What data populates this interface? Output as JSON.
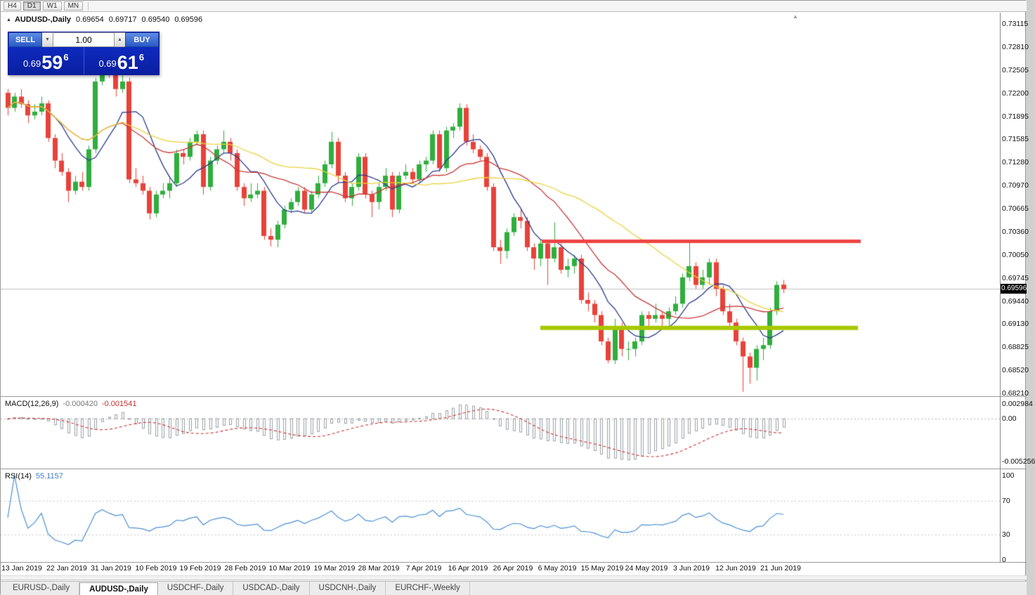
{
  "toolbar": {
    "timeframes": [
      {
        "label": "H4",
        "active": false
      },
      {
        "label": "D1",
        "active": true
      },
      {
        "label": "W1",
        "active": false
      },
      {
        "label": "MN",
        "active": false
      }
    ]
  },
  "header": {
    "collapse_icon": "▲",
    "symbol": "AUDUSD-,Daily",
    "open": "0.69654",
    "high": "0.69717",
    "low": "0.69540",
    "close": "0.69596"
  },
  "one_click": {
    "sell_label": "SELL",
    "buy_label": "BUY",
    "volume": "1.00",
    "spin_down": "▼",
    "spin_up": "▲",
    "sell_price": {
      "prefix": "0.69",
      "pips": "59",
      "pipette": "6"
    },
    "buy_price": {
      "prefix": "0.69",
      "pips": "61",
      "pipette": "6"
    }
  },
  "current_price_tag": "0.69596",
  "price_axis_labels": [
    "0.73115",
    "0.72810",
    "0.72505",
    "0.72200",
    "0.71895",
    "0.71585",
    "0.71280",
    "0.70970",
    "0.70665",
    "0.70360",
    "0.70050",
    "0.69745",
    "0.69440",
    "0.69130",
    "0.68825",
    "0.68520",
    "0.68210"
  ],
  "macd_panel": {
    "title": "MACD(12,26,9)",
    "main_value": "-0.000420",
    "signal_value": "-0.001541",
    "axis_top": "0.002984",
    "axis_zero": "0.00",
    "axis_bottom": "-0.005256"
  },
  "rsi_panel": {
    "title": "RSI(14)",
    "value": "55.1157",
    "axis": [
      "100",
      "70",
      "30",
      "0"
    ],
    "levels": [
      70,
      30
    ]
  },
  "tabs": [
    {
      "label": "EURUSD-,Daily",
      "active": false
    },
    {
      "label": "AUDUSD-,Daily",
      "active": true
    },
    {
      "label": "USDCHF-,Daily",
      "active": false
    },
    {
      "label": "USDCAD-,Daily",
      "active": false
    },
    {
      "label": "USDCNH-,Daily",
      "active": false
    },
    {
      "label": "EURCHF-,Weekly",
      "active": false
    }
  ],
  "colors": {
    "up": "#2fae3d",
    "down": "#e8423a",
    "ma_fast": "#2b3a8f",
    "ma_mid": "#c93a3a",
    "ma_slow": "#e9d23c",
    "macd_hist": "#9aa0a6",
    "macd_signal": "#cc3333",
    "rsi_line": "#4a8fd4",
    "hline_red": "#ef4444",
    "hline_olive": "#a6c800",
    "price_line": "#c0c0c0",
    "tag_bg": "#000000"
  },
  "chart_data": {
    "type": "candlestick",
    "title": "AUDUSD-,Daily",
    "ylim": [
      0.6821,
      0.73115
    ],
    "x_axis_dates": [
      "13 Jan 2019",
      "22 Jan 2019",
      "31 Jan 2019",
      "10 Feb 2019",
      "19 Feb 2019",
      "28 Feb 2019",
      "10 Mar 2019",
      "19 Mar 2019",
      "28 Mar 2019",
      "7 Apr 2019",
      "16 Apr 2019",
      "26 Apr 2019",
      "6 May 2019",
      "15 May 2019",
      "24 May 2019",
      "3 Jun 2019",
      "12 Jun 2019",
      "21 Jun 2019"
    ],
    "current_bar_ohlc": [
      0.69654,
      0.69717,
      0.6954,
      0.69596
    ],
    "candles_ohlc": [
      [
        0.722,
        0.7225,
        0.719,
        0.72
      ],
      [
        0.72,
        0.722,
        0.7195,
        0.7215
      ],
      [
        0.7215,
        0.7225,
        0.72,
        0.7205
      ],
      [
        0.7205,
        0.721,
        0.718,
        0.719
      ],
      [
        0.719,
        0.7205,
        0.7185,
        0.7195
      ],
      [
        0.7195,
        0.7215,
        0.719,
        0.7206
      ],
      [
        0.7206,
        0.721,
        0.7155,
        0.716
      ],
      [
        0.716,
        0.7165,
        0.712,
        0.713
      ],
      [
        0.713,
        0.714,
        0.711,
        0.7115
      ],
      [
        0.7115,
        0.712,
        0.7075,
        0.709
      ],
      [
        0.709,
        0.711,
        0.7085,
        0.7102
      ],
      [
        0.7102,
        0.7115,
        0.709,
        0.7095
      ],
      [
        0.7095,
        0.715,
        0.709,
        0.7145
      ],
      [
        0.7145,
        0.724,
        0.714,
        0.7235
      ],
      [
        0.7235,
        0.729,
        0.723,
        0.727
      ],
      [
        0.727,
        0.7275,
        0.724,
        0.7245
      ],
      [
        0.7245,
        0.725,
        0.7215,
        0.7225
      ],
      [
        0.7225,
        0.7245,
        0.722,
        0.7235
      ],
      [
        0.7235,
        0.724,
        0.71,
        0.7105
      ],
      [
        0.7105,
        0.712,
        0.7095,
        0.71
      ],
      [
        0.71,
        0.711,
        0.7085,
        0.709
      ],
      [
        0.709,
        0.7095,
        0.7052,
        0.706
      ],
      [
        0.706,
        0.709,
        0.7055,
        0.7085
      ],
      [
        0.7085,
        0.71,
        0.708,
        0.709
      ],
      [
        0.709,
        0.711,
        0.708,
        0.71
      ],
      [
        0.71,
        0.7145,
        0.7095,
        0.714
      ],
      [
        0.714,
        0.7145,
        0.7125,
        0.7135
      ],
      [
        0.7135,
        0.716,
        0.713,
        0.7155
      ],
      [
        0.7155,
        0.717,
        0.715,
        0.7165
      ],
      [
        0.7165,
        0.717,
        0.7085,
        0.7095
      ],
      [
        0.7095,
        0.7135,
        0.709,
        0.713
      ],
      [
        0.713,
        0.715,
        0.7125,
        0.7145
      ],
      [
        0.7145,
        0.717,
        0.714,
        0.7155
      ],
      [
        0.7155,
        0.716,
        0.713,
        0.714
      ],
      [
        0.714,
        0.7145,
        0.709,
        0.7095
      ],
      [
        0.7095,
        0.71,
        0.707,
        0.708
      ],
      [
        0.708,
        0.71,
        0.7075,
        0.7085
      ],
      [
        0.7085,
        0.71,
        0.708,
        0.709
      ],
      [
        0.709,
        0.7095,
        0.7025,
        0.703
      ],
      [
        0.703,
        0.704,
        0.7016,
        0.7025
      ],
      [
        0.7025,
        0.705,
        0.7015,
        0.7045
      ],
      [
        0.7045,
        0.707,
        0.704,
        0.7065
      ],
      [
        0.7065,
        0.708,
        0.706,
        0.7075
      ],
      [
        0.7075,
        0.7095,
        0.707,
        0.709
      ],
      [
        0.709,
        0.7095,
        0.706,
        0.7065
      ],
      [
        0.7065,
        0.709,
        0.706,
        0.7085
      ],
      [
        0.7085,
        0.711,
        0.708,
        0.71
      ],
      [
        0.71,
        0.713,
        0.7095,
        0.7125
      ],
      [
        0.7125,
        0.7168,
        0.712,
        0.7155
      ],
      [
        0.7155,
        0.716,
        0.71,
        0.711
      ],
      [
        0.711,
        0.7115,
        0.7075,
        0.708
      ],
      [
        0.708,
        0.71,
        0.707,
        0.7095
      ],
      [
        0.7095,
        0.714,
        0.709,
        0.7135
      ],
      [
        0.7135,
        0.714,
        0.708,
        0.7085
      ],
      [
        0.7085,
        0.709,
        0.7055,
        0.7075
      ],
      [
        0.7075,
        0.71,
        0.7065,
        0.7095
      ],
      [
        0.7095,
        0.712,
        0.709,
        0.711
      ],
      [
        0.711,
        0.7115,
        0.7055,
        0.7065
      ],
      [
        0.7065,
        0.7115,
        0.706,
        0.711
      ],
      [
        0.711,
        0.7125,
        0.7105,
        0.7115
      ],
      [
        0.7115,
        0.712,
        0.71,
        0.7105
      ],
      [
        0.7105,
        0.713,
        0.71,
        0.7125
      ],
      [
        0.7125,
        0.7135,
        0.7115,
        0.713
      ],
      [
        0.713,
        0.717,
        0.7125,
        0.7165
      ],
      [
        0.7165,
        0.717,
        0.7115,
        0.712
      ],
      [
        0.712,
        0.7175,
        0.7115,
        0.717
      ],
      [
        0.717,
        0.718,
        0.716,
        0.7175
      ],
      [
        0.7175,
        0.7206,
        0.717,
        0.72
      ],
      [
        0.72,
        0.7205,
        0.715,
        0.7155
      ],
      [
        0.7155,
        0.7165,
        0.714,
        0.7145
      ],
      [
        0.7145,
        0.715,
        0.713,
        0.7135
      ],
      [
        0.7135,
        0.714,
        0.709,
        0.7095
      ],
      [
        0.7095,
        0.71,
        0.701,
        0.7015
      ],
      [
        0.7015,
        0.7025,
        0.6993,
        0.701
      ],
      [
        0.701,
        0.704,
        0.7,
        0.7035
      ],
      [
        0.7035,
        0.706,
        0.703,
        0.7055
      ],
      [
        0.7055,
        0.7065,
        0.704,
        0.705
      ],
      [
        0.705,
        0.7055,
        0.701,
        0.7015
      ],
      [
        0.7015,
        0.702,
        0.6985,
        0.7
      ],
      [
        0.7,
        0.7025,
        0.699,
        0.702
      ],
      [
        0.702,
        0.7025,
        0.6965,
        0.7
      ],
      [
        0.7,
        0.7048,
        0.6995,
        0.7015
      ],
      [
        0.7015,
        0.702,
        0.698,
        0.6985
      ],
      [
        0.6985,
        0.7,
        0.6975,
        0.699
      ],
      [
        0.699,
        0.7005,
        0.698,
        0.7
      ],
      [
        0.7,
        0.7005,
        0.694,
        0.6945
      ],
      [
        0.6945,
        0.6955,
        0.693,
        0.694
      ],
      [
        0.694,
        0.6945,
        0.6915,
        0.6925
      ],
      [
        0.6925,
        0.693,
        0.6885,
        0.689
      ],
      [
        0.689,
        0.6895,
        0.6861,
        0.6865
      ],
      [
        0.6865,
        0.692,
        0.686,
        0.691
      ],
      [
        0.691,
        0.6915,
        0.687,
        0.688
      ],
      [
        0.688,
        0.689,
        0.6865,
        0.688
      ],
      [
        0.688,
        0.6895,
        0.687,
        0.689
      ],
      [
        0.689,
        0.693,
        0.6885,
        0.6925
      ],
      [
        0.6925,
        0.693,
        0.6905,
        0.692
      ],
      [
        0.692,
        0.694,
        0.6915,
        0.6925
      ],
      [
        0.6925,
        0.693,
        0.691,
        0.692
      ],
      [
        0.692,
        0.6935,
        0.691,
        0.693
      ],
      [
        0.693,
        0.695,
        0.6925,
        0.694
      ],
      [
        0.694,
        0.698,
        0.6935,
        0.6975
      ],
      [
        0.6975,
        0.7022,
        0.697,
        0.699
      ],
      [
        0.699,
        0.6995,
        0.696,
        0.6965
      ],
      [
        0.6965,
        0.6985,
        0.696,
        0.6975
      ],
      [
        0.6975,
        0.7,
        0.6965,
        0.6995
      ],
      [
        0.6995,
        0.7,
        0.695,
        0.696
      ],
      [
        0.696,
        0.6965,
        0.6925,
        0.693
      ],
      [
        0.693,
        0.694,
        0.691,
        0.6915
      ],
      [
        0.6915,
        0.692,
        0.6885,
        0.689
      ],
      [
        0.689,
        0.6895,
        0.6823,
        0.687
      ],
      [
        0.687,
        0.6875,
        0.6834,
        0.6855
      ],
      [
        0.6855,
        0.6885,
        0.6838,
        0.688
      ],
      [
        0.688,
        0.6895,
        0.6865,
        0.6885
      ],
      [
        0.6885,
        0.6935,
        0.688,
        0.693
      ],
      [
        0.693,
        0.697,
        0.6925,
        0.6965
      ],
      [
        0.69654,
        0.69717,
        0.6954,
        0.69596
      ]
    ],
    "moving_averages": [
      {
        "period": 8,
        "color_key": "ma_fast"
      },
      {
        "period": 17,
        "color_key": "ma_mid"
      },
      {
        "period": 34,
        "color_key": "ma_slow"
      }
    ],
    "hlines": [
      {
        "name": "resistance-line",
        "price": 0.7023,
        "color_key": "hline_red",
        "x1": 770,
        "x2": 1224,
        "thickness": 5
      },
      {
        "name": "support-line",
        "price": 0.6908,
        "color_key": "hline_olive",
        "x1": 768,
        "x2": 1220,
        "thickness": 6
      }
    ],
    "indicators": [
      {
        "name": "MACD",
        "fast": 12,
        "slow": 26,
        "signal": 9,
        "current_main": -0.00042,
        "current_signal": -0.001541
      },
      {
        "name": "RSI",
        "period": 14,
        "current": 55.1157,
        "levels": [
          30,
          70
        ]
      }
    ]
  }
}
